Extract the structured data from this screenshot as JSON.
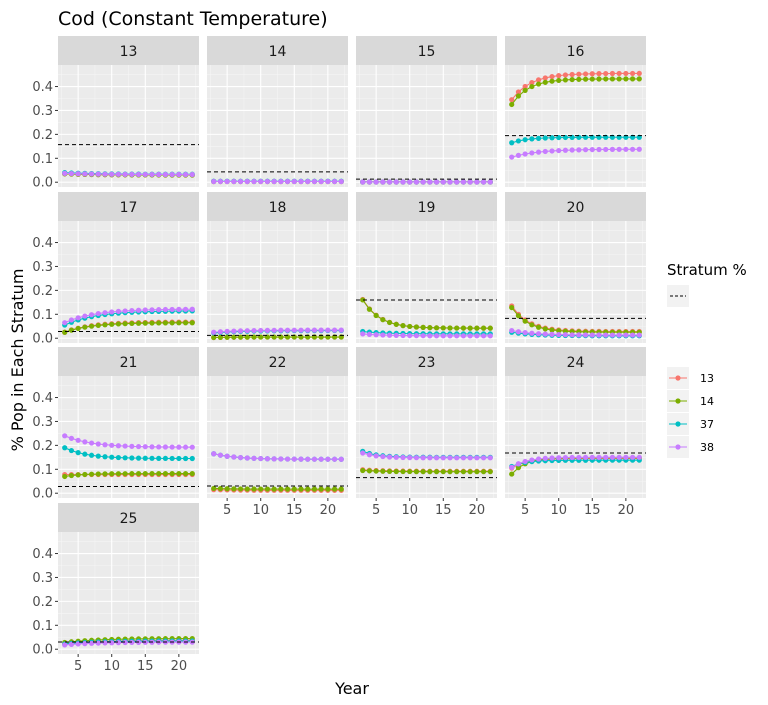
{
  "chart_data": {
    "type": "line",
    "title": "Cod  (Constant Temperature)",
    "xlabel": "Year",
    "ylabel": "% Pop in Each Stratum",
    "xlim": [
      2,
      23
    ],
    "ylim": [
      -0.02,
      0.49
    ],
    "x_ticks": [
      5,
      10,
      15,
      20
    ],
    "y_ticks": [
      0.0,
      0.1,
      0.2,
      0.3,
      0.4
    ],
    "y_tick_labels": [
      "0.0",
      "0.1",
      "0.2",
      "0.3",
      "0.4"
    ],
    "x": [
      3,
      4,
      5,
      6,
      7,
      8,
      9,
      10,
      11,
      12,
      13,
      14,
      15,
      16,
      17,
      18,
      19,
      20,
      21,
      22
    ],
    "grid": true,
    "legend_position": "right",
    "legend": {
      "reference_title": "Stratum %",
      "reference_key": "dashed line",
      "series_labels": [
        "13",
        "14",
        "37",
        "38"
      ]
    },
    "series_colors": {
      "13": "#F8766D",
      "14": "#7CAE00",
      "37": "#00BFC4",
      "38": "#C77CFF"
    },
    "panels": [
      {
        "label": "13",
        "reference": 0.157,
        "series": [
          {
            "name": "13",
            "start": 0.035,
            "end": 0.03,
            "rate": 0.2
          },
          {
            "name": "14",
            "start": 0.035,
            "end": 0.03,
            "rate": 0.2
          },
          {
            "name": "37",
            "start": 0.04,
            "end": 0.033,
            "rate": 0.2
          },
          {
            "name": "38",
            "start": 0.037,
            "end": 0.032,
            "rate": 0.2
          }
        ]
      },
      {
        "label": "14",
        "reference": 0.043,
        "series": [
          {
            "name": "13",
            "start": 0.003,
            "end": 0.003,
            "rate": 0.3
          },
          {
            "name": "14",
            "start": 0.003,
            "end": 0.003,
            "rate": 0.3
          },
          {
            "name": "37",
            "start": 0.004,
            "end": 0.004,
            "rate": 0.3
          },
          {
            "name": "38",
            "start": 0.003,
            "end": 0.003,
            "rate": 0.3
          }
        ]
      },
      {
        "label": "15",
        "reference": 0.013,
        "series": [
          {
            "name": "13",
            "start": 0.001,
            "end": 0.001,
            "rate": 0.3
          },
          {
            "name": "14",
            "start": 0.001,
            "end": 0.001,
            "rate": 0.3
          },
          {
            "name": "37",
            "start": 0.001,
            "end": 0.001,
            "rate": 0.3
          },
          {
            "name": "38",
            "start": 0.001,
            "end": 0.001,
            "rate": 0.3
          }
        ]
      },
      {
        "label": "16",
        "reference": 0.195,
        "series": [
          {
            "name": "13",
            "start": 0.345,
            "end": 0.455,
            "rate": 0.35
          },
          {
            "name": "14",
            "start": 0.325,
            "end": 0.432,
            "rate": 0.4
          },
          {
            "name": "37",
            "start": 0.165,
            "end": 0.188,
            "rate": 0.4
          },
          {
            "name": "38",
            "start": 0.105,
            "end": 0.138,
            "rate": 0.25
          }
        ]
      },
      {
        "label": "17",
        "reference": 0.028,
        "series": [
          {
            "name": "13",
            "start": 0.025,
            "end": 0.068,
            "rate": 0.25
          },
          {
            "name": "14",
            "start": 0.025,
            "end": 0.065,
            "rate": 0.25
          },
          {
            "name": "37",
            "start": 0.055,
            "end": 0.115,
            "rate": 0.22
          },
          {
            "name": "38",
            "start": 0.065,
            "end": 0.122,
            "rate": 0.22
          }
        ]
      },
      {
        "label": "18",
        "reference": 0.012,
        "series": [
          {
            "name": "13",
            "start": 0.003,
            "end": 0.005,
            "rate": 0.3
          },
          {
            "name": "14",
            "start": 0.003,
            "end": 0.005,
            "rate": 0.3
          },
          {
            "name": "37",
            "start": 0.022,
            "end": 0.032,
            "rate": 0.25
          },
          {
            "name": "38",
            "start": 0.025,
            "end": 0.034,
            "rate": 0.25
          }
        ]
      },
      {
        "label": "19",
        "reference": 0.16,
        "series": [
          {
            "name": "13",
            "start": 0.162,
            "end": 0.042,
            "rate": 0.4
          },
          {
            "name": "14",
            "start": 0.16,
            "end": 0.042,
            "rate": 0.4
          },
          {
            "name": "37",
            "start": 0.028,
            "end": 0.018,
            "rate": 0.3
          },
          {
            "name": "38",
            "start": 0.018,
            "end": 0.01,
            "rate": 0.3
          }
        ]
      },
      {
        "label": "20",
        "reference": 0.083,
        "series": [
          {
            "name": "13",
            "start": 0.135,
            "end": 0.028,
            "rate": 0.4
          },
          {
            "name": "14",
            "start": 0.128,
            "end": 0.025,
            "rate": 0.4
          },
          {
            "name": "37",
            "start": 0.025,
            "end": 0.01,
            "rate": 0.3
          },
          {
            "name": "38",
            "start": 0.032,
            "end": 0.013,
            "rate": 0.3
          }
        ]
      },
      {
        "label": "21",
        "reference": 0.028,
        "series": [
          {
            "name": "13",
            "start": 0.078,
            "end": 0.078,
            "rate": 0.3
          },
          {
            "name": "14",
            "start": 0.07,
            "end": 0.082,
            "rate": 0.4
          },
          {
            "name": "37",
            "start": 0.19,
            "end": 0.145,
            "rate": 0.3
          },
          {
            "name": "38",
            "start": 0.24,
            "end": 0.192,
            "rate": 0.25
          }
        ]
      },
      {
        "label": "22",
        "reference": 0.03,
        "series": [
          {
            "name": "13",
            "start": 0.015,
            "end": 0.012,
            "rate": 0.3
          },
          {
            "name": "14",
            "start": 0.02,
            "end": 0.017,
            "rate": 0.3
          },
          {
            "name": "37",
            "start": 0.165,
            "end": 0.142,
            "rate": 0.3
          },
          {
            "name": "38",
            "start": 0.165,
            "end": 0.142,
            "rate": 0.3
          }
        ]
      },
      {
        "label": "23",
        "reference": 0.065,
        "series": [
          {
            "name": "13",
            "start": 0.098,
            "end": 0.092,
            "rate": 0.35
          },
          {
            "name": "14",
            "start": 0.095,
            "end": 0.09,
            "rate": 0.35
          },
          {
            "name": "37",
            "start": 0.175,
            "end": 0.15,
            "rate": 0.45
          },
          {
            "name": "38",
            "start": 0.168,
            "end": 0.148,
            "rate": 0.45
          }
        ]
      },
      {
        "label": "24",
        "reference": 0.168,
        "series": [
          {
            "name": "13",
            "start": 0.105,
            "end": 0.145,
            "rate": 0.45
          },
          {
            "name": "14",
            "start": 0.08,
            "end": 0.148,
            "rate": 0.5
          },
          {
            "name": "37",
            "start": 0.112,
            "end": 0.138,
            "rate": 0.5
          },
          {
            "name": "38",
            "start": 0.108,
            "end": 0.15,
            "rate": 0.45
          }
        ]
      },
      {
        "label": "25",
        "reference": 0.03,
        "series": [
          {
            "name": "13",
            "start": 0.022,
            "end": 0.038,
            "rate": 0.2
          },
          {
            "name": "14",
            "start": 0.028,
            "end": 0.045,
            "rate": 0.2
          },
          {
            "name": "37",
            "start": 0.022,
            "end": 0.035,
            "rate": 0.2
          },
          {
            "name": "38",
            "start": 0.018,
            "end": 0.03,
            "rate": 0.2
          }
        ]
      }
    ]
  }
}
